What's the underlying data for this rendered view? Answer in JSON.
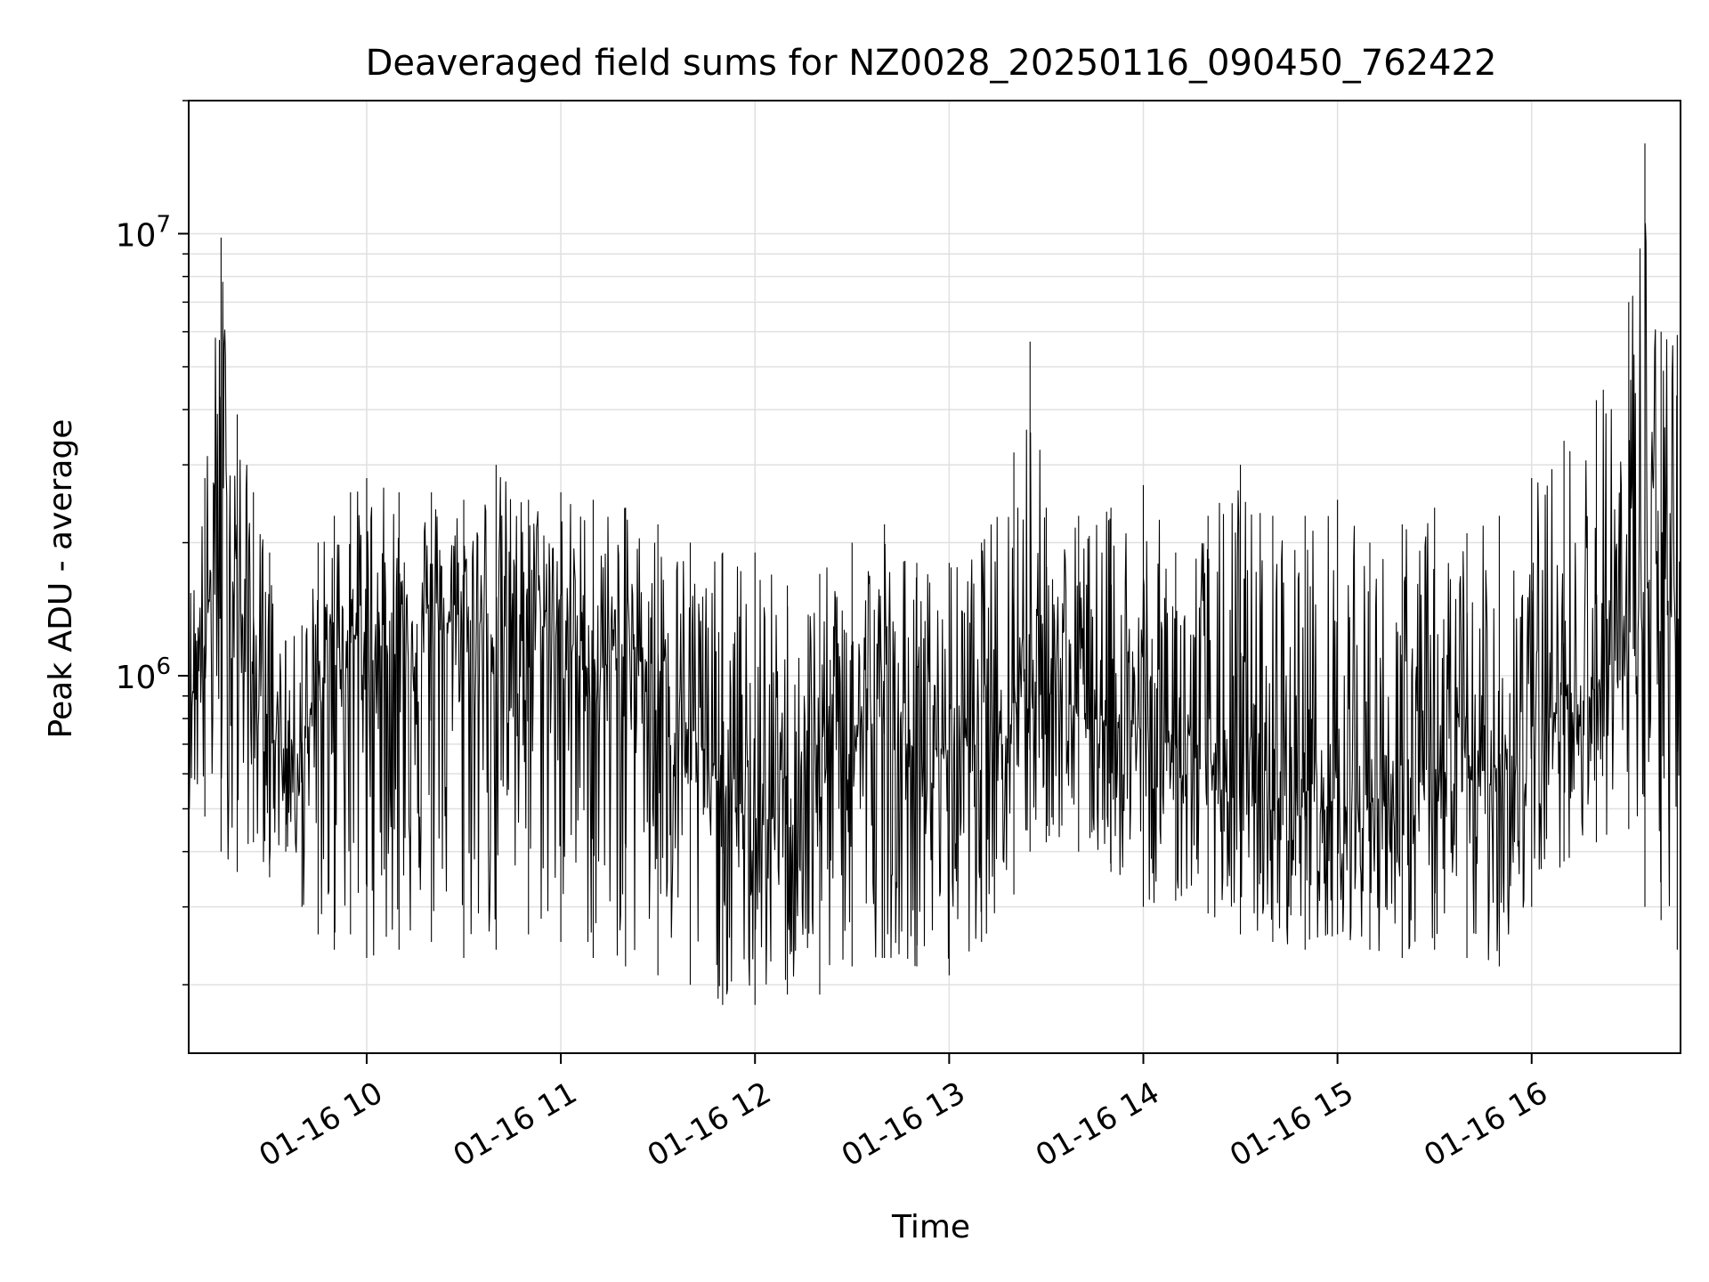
{
  "chart_data": {
    "type": "line",
    "title": "Deaveraged field sums for NZ0028_20250116_090450_762422",
    "xlabel": "Time",
    "ylabel": "Peak ADU - average",
    "y_scale": "log",
    "xlim": [
      "2025-01-16T09:05:00",
      "2025-01-16T16:46:00"
    ],
    "ylim": [
      140000,
      20000000
    ],
    "x_ticks": [
      {
        "value": "2025-01-16T10:00:00",
        "label": "01-16 10"
      },
      {
        "value": "2025-01-16T11:00:00",
        "label": "01-16 11"
      },
      {
        "value": "2025-01-16T12:00:00",
        "label": "01-16 12"
      },
      {
        "value": "2025-01-16T13:00:00",
        "label": "01-16 13"
      },
      {
        "value": "2025-01-16T14:00:00",
        "label": "01-16 14"
      },
      {
        "value": "2025-01-16T15:00:00",
        "label": "01-16 15"
      },
      {
        "value": "2025-01-16T16:00:00",
        "label": "01-16 16"
      }
    ],
    "y_ticks": [
      {
        "value": 1000000,
        "base": "10",
        "exp": "6"
      },
      {
        "value": 10000000,
        "base": "10",
        "exp": "7"
      }
    ],
    "grid": true,
    "line_color": "#000000",
    "grid_color": "#e0e0e0",
    "series": [
      {
        "x": [
          "2025-01-16T09:05:00",
          "2025-01-16T09:10:00",
          "2025-01-16T09:15:00",
          "2025-01-16T09:20:00",
          "2025-01-16T09:25:00",
          "2025-01-16T09:30:00",
          "2025-01-16T09:35:00",
          "2025-01-16T09:40:00",
          "2025-01-16T09:45:00",
          "2025-01-16T09:50:00",
          "2025-01-16T09:55:00",
          "2025-01-16T10:00:00",
          "2025-01-16T10:10:00",
          "2025-01-16T10:20:00",
          "2025-01-16T10:30:00",
          "2025-01-16T10:40:00",
          "2025-01-16T10:50:00",
          "2025-01-16T11:00:00",
          "2025-01-16T11:10:00",
          "2025-01-16T11:20:00",
          "2025-01-16T11:30:00",
          "2025-01-16T11:40:00",
          "2025-01-16T11:50:00",
          "2025-01-16T12:00:00",
          "2025-01-16T12:10:00",
          "2025-01-16T12:20:00",
          "2025-01-16T12:30:00",
          "2025-01-16T12:40:00",
          "2025-01-16T12:50:00",
          "2025-01-16T13:00:00",
          "2025-01-16T13:10:00",
          "2025-01-16T13:20:00",
          "2025-01-16T13:25:00",
          "2025-01-16T13:30:00",
          "2025-01-16T13:40:00",
          "2025-01-16T13:50:00",
          "2025-01-16T14:00:00",
          "2025-01-16T14:10:00",
          "2025-01-16T14:20:00",
          "2025-01-16T14:30:00",
          "2025-01-16T14:40:00",
          "2025-01-16T14:50:00",
          "2025-01-16T15:00:00",
          "2025-01-16T15:10:00",
          "2025-01-16T15:20:00",
          "2025-01-16T15:30:00",
          "2025-01-16T15:40:00",
          "2025-01-16T15:50:00",
          "2025-01-16T16:00:00",
          "2025-01-16T16:10:00",
          "2025-01-16T16:20:00",
          "2025-01-16T16:30:00",
          "2025-01-16T16:35:00",
          "2025-01-16T16:40:00",
          "2025-01-16T16:45:00"
        ],
        "values": [
          900000,
          1200000,
          2500000,
          1500000,
          1000000,
          800000,
          650000,
          700000,
          850000,
          1100000,
          1300000,
          1050000,
          1250000,
          1350000,
          1300000,
          1250000,
          1400000,
          1250000,
          1000000,
          1150000,
          1050000,
          750000,
          550000,
          450000,
          500000,
          650000,
          750000,
          800000,
          650000,
          700000,
          750000,
          900000,
          1150000,
          950000,
          850000,
          800000,
          750000,
          700000,
          650000,
          500000,
          520000,
          550000,
          500000,
          520000,
          550000,
          560000,
          600000,
          620000,
          750000,
          850000,
          950000,
          1200000,
          1600000,
          1500000,
          1300000
        ],
        "min": [
          500000,
          480000,
          400000,
          360000,
          420000,
          350000,
          400000,
          300000,
          260000,
          240000,
          260000,
          230000,
          240000,
          250000,
          230000,
          240000,
          260000,
          250000,
          230000,
          220000,
          210000,
          200000,
          180000,
          180000,
          190000,
          190000,
          220000,
          230000,
          220000,
          210000,
          250000,
          320000,
          400000,
          420000,
          400000,
          360000,
          300000,
          310000,
          290000,
          260000,
          250000,
          240000,
          260000,
          240000,
          230000,
          240000,
          230000,
          220000,
          300000,
          380000,
          420000,
          450000,
          300000,
          280000,
          240000
        ],
        "max": [
          1600000,
          2800000,
          9800000,
          3900000,
          2600000,
          1900000,
          1200000,
          1300000,
          2000000,
          2300000,
          2600000,
          2800000,
          2600000,
          2600000,
          2500000,
          3000000,
          2500000,
          2600000,
          2500000,
          2400000,
          2200000,
          2000000,
          1900000,
          1900000,
          1600000,
          1700000,
          2000000,
          2200000,
          1800000,
          1800000,
          2000000,
          3200000,
          5700000,
          2400000,
          2300000,
          2400000,
          2700000,
          1900000,
          2300000,
          3000000,
          2300000,
          2300000,
          2500000,
          2000000,
          2200000,
          2400000,
          2100000,
          2300000,
          2800000,
          3400000,
          4200000,
          7000000,
          16000000,
          6000000,
          5900000
        ]
      }
    ]
  }
}
